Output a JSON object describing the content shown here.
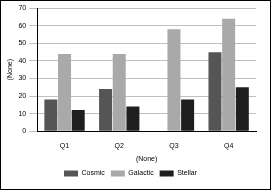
{
  "chart_data": {
    "type": "bar",
    "x_label": "(None)",
    "y_label": "(None)",
    "categories": [
      "Q1",
      "Q2",
      "Q3",
      "Q4"
    ],
    "series": [
      {
        "name": "Cosmic",
        "color": "#555555",
        "values": [
          18,
          24,
          null,
          45
        ]
      },
      {
        "name": "Galactic",
        "color": "#a9a9a9",
        "values": [
          44,
          44,
          58,
          64
        ]
      },
      {
        "name": "Stellar",
        "color": "#1e1e1e",
        "values": [
          12,
          14,
          18,
          25
        ]
      }
    ],
    "ylim": [
      0,
      70
    ],
    "yticks": [
      0,
      10,
      20,
      30,
      40,
      50,
      60,
      70
    ],
    "grid": true,
    "legend": "bottom"
  }
}
